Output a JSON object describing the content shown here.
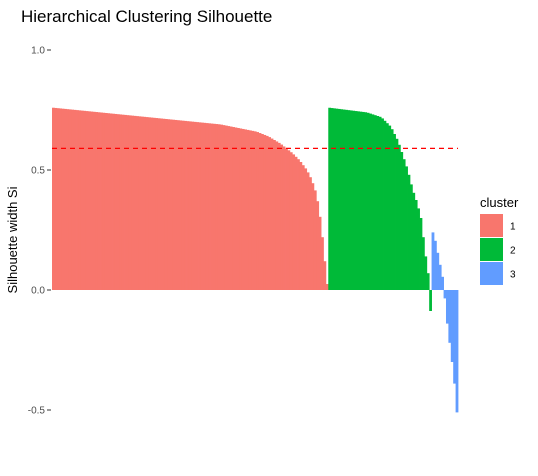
{
  "chart_data": {
    "type": "bar",
    "title": "Hierarchical Clustering Silhouette",
    "xlabel": "",
    "ylabel": "Silhouette width Si",
    "ylim": [
      -0.59,
      1.03
    ],
    "yticks": [
      -0.5,
      0.0,
      0.5,
      1.0
    ],
    "ytick_labels": [
      "-0.5",
      "0.0",
      "0.5",
      "1.0"
    ],
    "grid": false,
    "average_silhouette": 0.59,
    "average_line_color": "#ff0000",
    "legend": {
      "title": "cluster",
      "position": "right"
    },
    "series": [
      {
        "name": "1",
        "color": "#f8766d",
        "count": 115,
        "profile": [
          [
            0,
            0.76
          ],
          [
            10,
            0.75
          ],
          [
            20,
            0.74
          ],
          [
            30,
            0.73
          ],
          [
            40,
            0.72
          ],
          [
            50,
            0.71
          ],
          [
            60,
            0.7
          ],
          [
            70,
            0.69
          ],
          [
            80,
            0.67
          ],
          [
            85,
            0.66
          ],
          [
            90,
            0.64
          ],
          [
            95,
            0.61
          ],
          [
            100,
            0.57
          ],
          [
            103,
            0.54
          ],
          [
            106,
            0.5
          ],
          [
            108,
            0.46
          ],
          [
            110,
            0.4
          ],
          [
            111,
            0.34
          ],
          [
            112,
            0.27
          ],
          [
            113,
            0.17
          ],
          [
            114,
            0.07
          ],
          [
            115,
            -0.02
          ]
        ]
      },
      {
        "name": "2",
        "color": "#00ba38",
        "count": 43,
        "profile": [
          [
            0,
            0.76
          ],
          [
            8,
            0.75
          ],
          [
            16,
            0.74
          ],
          [
            22,
            0.72
          ],
          [
            26,
            0.68
          ],
          [
            29,
            0.62
          ],
          [
            31,
            0.56
          ],
          [
            33,
            0.5
          ],
          [
            35,
            0.42
          ],
          [
            37,
            0.36
          ],
          [
            38.5,
            0.3
          ],
          [
            39.5,
            0.22
          ],
          [
            40.5,
            0.14
          ],
          [
            41.5,
            0.07
          ],
          [
            42.2,
            -0.02
          ],
          [
            42.6,
            -0.11
          ],
          [
            43,
            -0.24
          ]
        ]
      },
      {
        "name": "3",
        "color": "#619cff",
        "count": 11,
        "profile": [
          [
            0,
            0.25
          ],
          [
            1,
            0.23
          ],
          [
            2,
            0.18
          ],
          [
            3,
            0.13
          ],
          [
            4,
            0.08
          ],
          [
            5,
            0.03
          ],
          [
            6,
            -0.1
          ],
          [
            7,
            -0.18
          ],
          [
            8,
            -0.26
          ],
          [
            9,
            -0.34
          ],
          [
            10,
            -0.44
          ],
          [
            11,
            -0.58
          ]
        ]
      }
    ]
  }
}
